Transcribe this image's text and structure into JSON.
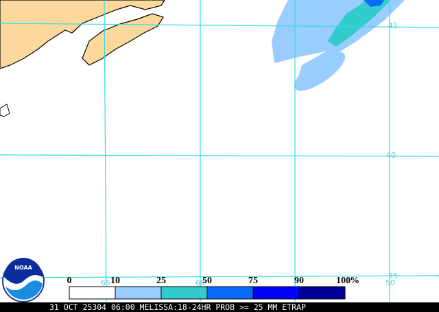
{
  "map": {
    "lat_labels": [
      "45",
      "40",
      "35"
    ],
    "lon_labels": [
      "65",
      "60",
      "50"
    ]
  },
  "legend": {
    "labels": [
      "0",
      "10",
      "25",
      "50",
      "75",
      "90",
      "100"
    ],
    "unit": "%",
    "colors": [
      "#ffffff",
      "#99ccff",
      "#33cccc",
      "#0a6cff",
      "#0000ff",
      "#000099"
    ]
  },
  "logo": "NOAA",
  "caption": "31 OCT 25304 06:00 MELISSA:18-24HR PROB >= 25 MM ETRAP"
}
